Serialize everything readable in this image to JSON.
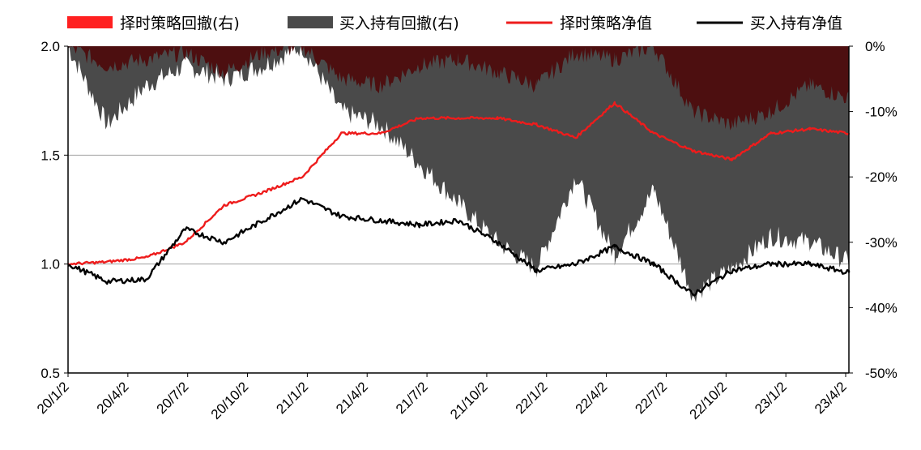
{
  "chart_data": {
    "type": "line",
    "title": "",
    "xlabel": "",
    "ylabel": "",
    "left_axis": {
      "ylim": [
        0.5,
        2.0
      ],
      "ticks": [
        "0.5",
        "1.0",
        "1.5",
        "2.0"
      ]
    },
    "right_axis": {
      "ylim": [
        -50,
        0
      ],
      "ticks": [
        "-50%",
        "-40%",
        "-30%",
        "-20%",
        "-10%",
        "0%"
      ]
    },
    "x_ticks": [
      "20/1/2",
      "20/4/2",
      "20/7/2",
      "20/10/2",
      "21/1/2",
      "21/4/2",
      "21/7/2",
      "21/10/2",
      "22/1/2",
      "22/4/2",
      "22/7/2",
      "22/10/2",
      "23/1/2",
      "23/4/2"
    ],
    "grid": "horizontal",
    "legend_position": "top",
    "series": [
      {
        "name": "择时策略回撤(右)",
        "kind": "area",
        "axis": "right",
        "color": "#4d0f10",
        "x": [
          0,
          2,
          4,
          6,
          8,
          10,
          12,
          14,
          16,
          18,
          20,
          22,
          24,
          26,
          28,
          30,
          32,
          34,
          36,
          38,
          40
        ],
        "values": [
          0,
          -3,
          -2,
          -1,
          -4,
          -1,
          0,
          -5,
          -6,
          -3,
          -2,
          -4,
          -6,
          -1,
          -2,
          0,
          -10,
          -12,
          -10,
          -6,
          -8
        ]
      },
      {
        "name": "买入持有回撤(右)",
        "kind": "area",
        "axis": "right",
        "color": "#4a4a4a",
        "x": [
          0,
          2,
          4,
          6,
          8,
          10,
          12,
          14,
          16,
          18,
          20,
          22,
          24,
          26,
          28,
          30,
          32,
          34,
          36,
          38,
          40
        ],
        "values": [
          0,
          -12,
          -6,
          -3,
          -5,
          -3,
          0,
          -10,
          -12,
          -18,
          -24,
          -30,
          -34,
          -20,
          -32,
          -22,
          -38,
          -34,
          -29,
          -30,
          -33
        ]
      },
      {
        "name": "择时策略净值",
        "kind": "line",
        "axis": "left",
        "color": "#ee1c1c",
        "x": [
          0,
          2,
          4,
          6,
          8,
          10,
          12,
          14,
          16,
          18,
          20,
          22,
          24,
          26,
          28,
          30,
          32,
          34,
          36,
          38,
          40
        ],
        "values": [
          1.0,
          1.01,
          1.03,
          1.1,
          1.27,
          1.33,
          1.4,
          1.6,
          1.6,
          1.67,
          1.67,
          1.67,
          1.64,
          1.58,
          1.74,
          1.6,
          1.52,
          1.48,
          1.6,
          1.62,
          1.6
        ]
      },
      {
        "name": "买入持有净值",
        "kind": "line",
        "axis": "left",
        "color": "#000000",
        "x": [
          0,
          2,
          4,
          6,
          8,
          10,
          12,
          14,
          16,
          18,
          20,
          22,
          24,
          26,
          28,
          30,
          32,
          34,
          36,
          38,
          40
        ],
        "values": [
          1.0,
          0.92,
          0.93,
          1.16,
          1.1,
          1.2,
          1.3,
          1.22,
          1.2,
          1.18,
          1.2,
          1.1,
          0.97,
          1.0,
          1.08,
          1.0,
          0.86,
          0.97,
          1.0,
          1.0,
          0.96
        ]
      }
    ]
  }
}
